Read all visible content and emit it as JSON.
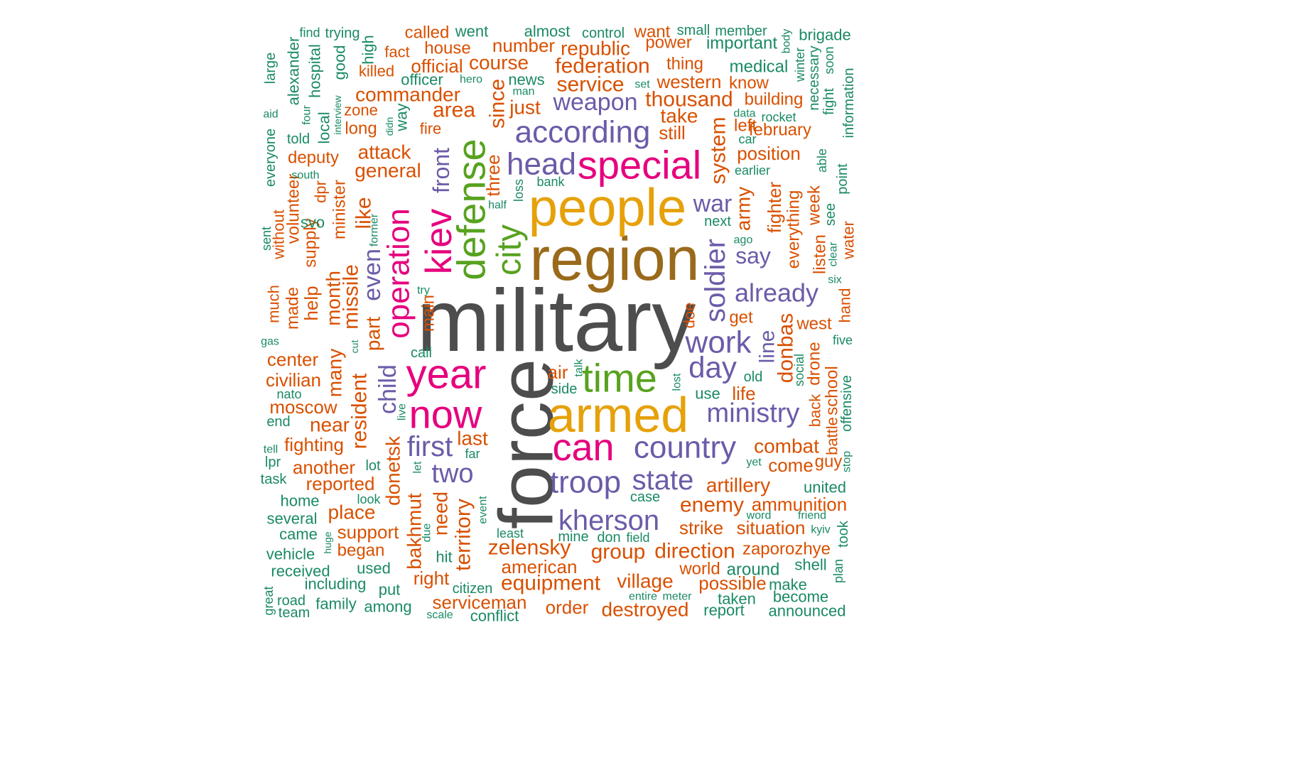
{
  "palette": {
    "gray": "#4d4d4d",
    "brown": "#9a6a1b",
    "gold": "#e6a10a",
    "magenta": "#e6007e",
    "green": "#57a21f",
    "purple": "#6c5ba8",
    "orange": "#d95000",
    "teal": "#1a8a63"
  },
  "words": [
    {
      "text": "military",
      "color": "gray"
    },
    {
      "text": "force",
      "color": "gray"
    },
    {
      "text": "region",
      "color": "brown"
    },
    {
      "text": "people",
      "color": "gold"
    },
    {
      "text": "armed",
      "color": "gold"
    },
    {
      "text": "special",
      "color": "magenta"
    },
    {
      "text": "year",
      "color": "magenta"
    },
    {
      "text": "now",
      "color": "magenta"
    },
    {
      "text": "can",
      "color": "magenta"
    },
    {
      "text": "kiev",
      "color": "magenta"
    },
    {
      "text": "operation",
      "color": "magenta"
    },
    {
      "text": "defense",
      "color": "green"
    },
    {
      "text": "city",
      "color": "green"
    },
    {
      "text": "time",
      "color": "green"
    },
    {
      "text": "according",
      "color": "purple"
    },
    {
      "text": "head",
      "color": "purple"
    },
    {
      "text": "work",
      "color": "purple"
    },
    {
      "text": "day",
      "color": "purple"
    },
    {
      "text": "country",
      "color": "purple"
    },
    {
      "text": "troop",
      "color": "purple"
    },
    {
      "text": "state",
      "color": "purple"
    },
    {
      "text": "kherson",
      "color": "purple"
    },
    {
      "text": "ministry",
      "color": "purple"
    },
    {
      "text": "first",
      "color": "purple"
    },
    {
      "text": "two",
      "color": "purple"
    },
    {
      "text": "soldier",
      "color": "purple"
    },
    {
      "text": "already",
      "color": "purple"
    },
    {
      "text": "weapon",
      "color": "purple"
    },
    {
      "text": "war",
      "color": "purple"
    },
    {
      "text": "say",
      "color": "purple"
    },
    {
      "text": "line",
      "color": "purple"
    },
    {
      "text": "even",
      "color": "purple"
    },
    {
      "text": "child",
      "color": "purple"
    },
    {
      "text": "front",
      "color": "purple"
    },
    {
      "text": "called",
      "color": "orange"
    },
    {
      "text": "want",
      "color": "orange"
    },
    {
      "text": "fact",
      "color": "orange"
    },
    {
      "text": "house",
      "color": "orange"
    },
    {
      "text": "number",
      "color": "orange"
    },
    {
      "text": "republic",
      "color": "orange"
    },
    {
      "text": "power",
      "color": "orange"
    },
    {
      "text": "killed",
      "color": "orange"
    },
    {
      "text": "official",
      "color": "orange"
    },
    {
      "text": "course",
      "color": "orange"
    },
    {
      "text": "federation",
      "color": "orange"
    },
    {
      "text": "thing",
      "color": "orange"
    },
    {
      "text": "commander",
      "color": "orange"
    },
    {
      "text": "service",
      "color": "orange"
    },
    {
      "text": "western",
      "color": "orange"
    },
    {
      "text": "know",
      "color": "orange"
    },
    {
      "text": "zone",
      "color": "orange"
    },
    {
      "text": "thousand",
      "color": "orange"
    },
    {
      "text": "building",
      "color": "orange"
    },
    {
      "text": "area",
      "color": "orange"
    },
    {
      "text": "just",
      "color": "orange"
    },
    {
      "text": "take",
      "color": "orange"
    },
    {
      "text": "left",
      "color": "orange"
    },
    {
      "text": "long",
      "color": "orange"
    },
    {
      "text": "fire",
      "color": "orange"
    },
    {
      "text": "still",
      "color": "orange"
    },
    {
      "text": "february",
      "color": "orange"
    },
    {
      "text": "attack",
      "color": "orange"
    },
    {
      "text": "deputy",
      "color": "orange"
    },
    {
      "text": "position",
      "color": "orange"
    },
    {
      "text": "general",
      "color": "orange"
    },
    {
      "text": "since",
      "color": "orange"
    },
    {
      "text": "system",
      "color": "orange"
    },
    {
      "text": "three",
      "color": "orange"
    },
    {
      "text": "army",
      "color": "orange"
    },
    {
      "text": "fighter",
      "color": "orange"
    },
    {
      "text": "everything",
      "color": "orange"
    },
    {
      "text": "week",
      "color": "orange"
    },
    {
      "text": "like",
      "color": "orange"
    },
    {
      "text": "minister",
      "color": "orange"
    },
    {
      "text": "dpr",
      "color": "orange"
    },
    {
      "text": "volunteer",
      "color": "orange"
    },
    {
      "text": "without",
      "color": "orange"
    },
    {
      "text": "supply",
      "color": "orange"
    },
    {
      "text": "missile",
      "color": "orange"
    },
    {
      "text": "month",
      "color": "orange"
    },
    {
      "text": "many",
      "color": "orange"
    },
    {
      "text": "help",
      "color": "orange"
    },
    {
      "text": "made",
      "color": "orange"
    },
    {
      "text": "much",
      "color": "orange"
    },
    {
      "text": "part",
      "color": "orange"
    },
    {
      "text": "main",
      "color": "orange"
    },
    {
      "text": "listen",
      "color": "orange"
    },
    {
      "text": "water",
      "color": "orange"
    },
    {
      "text": "hand",
      "color": "orange"
    },
    {
      "text": "doe",
      "color": "orange"
    },
    {
      "text": "get",
      "color": "orange"
    },
    {
      "text": "west",
      "color": "orange"
    },
    {
      "text": "donbas",
      "color": "orange"
    },
    {
      "text": "center",
      "color": "orange"
    },
    {
      "text": "civilian",
      "color": "orange"
    },
    {
      "text": "resident",
      "color": "orange"
    },
    {
      "text": "air",
      "color": "orange"
    },
    {
      "text": "life",
      "color": "orange"
    },
    {
      "text": "drone",
      "color": "orange"
    },
    {
      "text": "school",
      "color": "orange"
    },
    {
      "text": "back",
      "color": "orange"
    },
    {
      "text": "battle",
      "color": "orange"
    },
    {
      "text": "moscow",
      "color": "orange"
    },
    {
      "text": "near",
      "color": "orange"
    },
    {
      "text": "donetsk",
      "color": "orange"
    },
    {
      "text": "last",
      "color": "orange"
    },
    {
      "text": "combat",
      "color": "orange"
    },
    {
      "text": "fighting",
      "color": "orange"
    },
    {
      "text": "another",
      "color": "orange"
    },
    {
      "text": "come",
      "color": "orange"
    },
    {
      "text": "guy",
      "color": "orange"
    },
    {
      "text": "reported",
      "color": "orange"
    },
    {
      "text": "artillery",
      "color": "orange"
    },
    {
      "text": "place",
      "color": "orange"
    },
    {
      "text": "need",
      "color": "orange"
    },
    {
      "text": "enemy",
      "color": "orange"
    },
    {
      "text": "ammunition",
      "color": "orange"
    },
    {
      "text": "support",
      "color": "orange"
    },
    {
      "text": "bakhmut",
      "color": "orange"
    },
    {
      "text": "territory",
      "color": "orange"
    },
    {
      "text": "strike",
      "color": "orange"
    },
    {
      "text": "situation",
      "color": "orange"
    },
    {
      "text": "began",
      "color": "orange"
    },
    {
      "text": "zelensky",
      "color": "orange"
    },
    {
      "text": "group",
      "color": "orange"
    },
    {
      "text": "direction",
      "color": "orange"
    },
    {
      "text": "zaporozhye",
      "color": "orange"
    },
    {
      "text": "american",
      "color": "orange"
    },
    {
      "text": "world",
      "color": "orange"
    },
    {
      "text": "right",
      "color": "orange"
    },
    {
      "text": "equipment",
      "color": "orange"
    },
    {
      "text": "village",
      "color": "orange"
    },
    {
      "text": "possible",
      "color": "orange"
    },
    {
      "text": "serviceman",
      "color": "orange"
    },
    {
      "text": "order",
      "color": "orange"
    },
    {
      "text": "destroyed",
      "color": "orange"
    },
    {
      "text": "find",
      "color": "teal"
    },
    {
      "text": "trying",
      "color": "teal"
    },
    {
      "text": "went",
      "color": "teal"
    },
    {
      "text": "almost",
      "color": "teal"
    },
    {
      "text": "control",
      "color": "teal"
    },
    {
      "text": "small",
      "color": "teal"
    },
    {
      "text": "member",
      "color": "teal"
    },
    {
      "text": "brigade",
      "color": "teal"
    },
    {
      "text": "important",
      "color": "teal"
    },
    {
      "text": "body",
      "color": "teal"
    },
    {
      "text": "alexander",
      "color": "teal"
    },
    {
      "text": "hospital",
      "color": "teal"
    },
    {
      "text": "good",
      "color": "teal"
    },
    {
      "text": "high",
      "color": "teal"
    },
    {
      "text": "large",
      "color": "teal"
    },
    {
      "text": "winter",
      "color": "teal"
    },
    {
      "text": "necessary",
      "color": "teal"
    },
    {
      "text": "soon",
      "color": "teal"
    },
    {
      "text": "medical",
      "color": "teal"
    },
    {
      "text": "information",
      "color": "teal"
    },
    {
      "text": "officer",
      "color": "teal"
    },
    {
      "text": "hero",
      "color": "teal"
    },
    {
      "text": "news",
      "color": "teal"
    },
    {
      "text": "man",
      "color": "teal"
    },
    {
      "text": "set",
      "color": "teal"
    },
    {
      "text": "interview",
      "color": "teal"
    },
    {
      "text": "four",
      "color": "teal"
    },
    {
      "text": "aid",
      "color": "teal"
    },
    {
      "text": "fight",
      "color": "teal"
    },
    {
      "text": "data",
      "color": "teal"
    },
    {
      "text": "rocket",
      "color": "teal"
    },
    {
      "text": "local",
      "color": "teal"
    },
    {
      "text": "didn",
      "color": "teal"
    },
    {
      "text": "way",
      "color": "teal"
    },
    {
      "text": "car",
      "color": "teal"
    },
    {
      "text": "told",
      "color": "teal"
    },
    {
      "text": "everyone",
      "color": "teal"
    },
    {
      "text": "able",
      "color": "teal"
    },
    {
      "text": "earlier",
      "color": "teal"
    },
    {
      "text": "south",
      "color": "teal"
    },
    {
      "text": "bank",
      "color": "teal"
    },
    {
      "text": "point",
      "color": "teal"
    },
    {
      "text": "loss",
      "color": "teal"
    },
    {
      "text": "half",
      "color": "teal"
    },
    {
      "text": "former",
      "color": "teal"
    },
    {
      "text": "svo",
      "color": "teal"
    },
    {
      "text": "next",
      "color": "teal"
    },
    {
      "text": "see",
      "color": "teal"
    },
    {
      "text": "sent",
      "color": "teal"
    },
    {
      "text": "ago",
      "color": "teal"
    },
    {
      "text": "clear",
      "color": "teal"
    },
    {
      "text": "six",
      "color": "teal"
    },
    {
      "text": "try",
      "color": "teal"
    },
    {
      "text": "gas",
      "color": "teal"
    },
    {
      "text": "cut",
      "color": "teal"
    },
    {
      "text": "call",
      "color": "teal"
    },
    {
      "text": "five",
      "color": "teal"
    },
    {
      "text": "social",
      "color": "teal"
    },
    {
      "text": "talk",
      "color": "teal"
    },
    {
      "text": "old",
      "color": "teal"
    },
    {
      "text": "lost",
      "color": "teal"
    },
    {
      "text": "side",
      "color": "teal"
    },
    {
      "text": "use",
      "color": "teal"
    },
    {
      "text": "offensive",
      "color": "teal"
    },
    {
      "text": "nato",
      "color": "teal"
    },
    {
      "text": "live",
      "color": "teal"
    },
    {
      "text": "end",
      "color": "teal"
    },
    {
      "text": "tell",
      "color": "teal"
    },
    {
      "text": "far",
      "color": "teal"
    },
    {
      "text": "lpr",
      "color": "teal"
    },
    {
      "text": "lot",
      "color": "teal"
    },
    {
      "text": "let",
      "color": "teal"
    },
    {
      "text": "yet",
      "color": "teal"
    },
    {
      "text": "stop",
      "color": "teal"
    },
    {
      "text": "task",
      "color": "teal"
    },
    {
      "text": "united",
      "color": "teal"
    },
    {
      "text": "home",
      "color": "teal"
    },
    {
      "text": "look",
      "color": "teal"
    },
    {
      "text": "case",
      "color": "teal"
    },
    {
      "text": "several",
      "color": "teal"
    },
    {
      "text": "event",
      "color": "teal"
    },
    {
      "text": "word",
      "color": "teal"
    },
    {
      "text": "friend",
      "color": "teal"
    },
    {
      "text": "came",
      "color": "teal"
    },
    {
      "text": "huge",
      "color": "teal"
    },
    {
      "text": "due",
      "color": "teal"
    },
    {
      "text": "least",
      "color": "teal"
    },
    {
      "text": "mine",
      "color": "teal"
    },
    {
      "text": "don",
      "color": "teal"
    },
    {
      "text": "field",
      "color": "teal"
    },
    {
      "text": "kyiv",
      "color": "teal"
    },
    {
      "text": "took",
      "color": "teal"
    },
    {
      "text": "vehicle",
      "color": "teal"
    },
    {
      "text": "hit",
      "color": "teal"
    },
    {
      "text": "received",
      "color": "teal"
    },
    {
      "text": "used",
      "color": "teal"
    },
    {
      "text": "around",
      "color": "teal"
    },
    {
      "text": "shell",
      "color": "teal"
    },
    {
      "text": "plan",
      "color": "teal"
    },
    {
      "text": "great",
      "color": "teal"
    },
    {
      "text": "including",
      "color": "teal"
    },
    {
      "text": "put",
      "color": "teal"
    },
    {
      "text": "citizen",
      "color": "teal"
    },
    {
      "text": "entire",
      "color": "teal"
    },
    {
      "text": "meter",
      "color": "teal"
    },
    {
      "text": "make",
      "color": "teal"
    },
    {
      "text": "taken",
      "color": "teal"
    },
    {
      "text": "become",
      "color": "teal"
    },
    {
      "text": "road",
      "color": "teal"
    },
    {
      "text": "family",
      "color": "teal"
    },
    {
      "text": "among",
      "color": "teal"
    },
    {
      "text": "team",
      "color": "teal"
    },
    {
      "text": "scale",
      "color": "teal"
    },
    {
      "text": "conflict",
      "color": "teal"
    },
    {
      "text": "report",
      "color": "teal"
    },
    {
      "text": "announced",
      "color": "teal"
    }
  ]
}
